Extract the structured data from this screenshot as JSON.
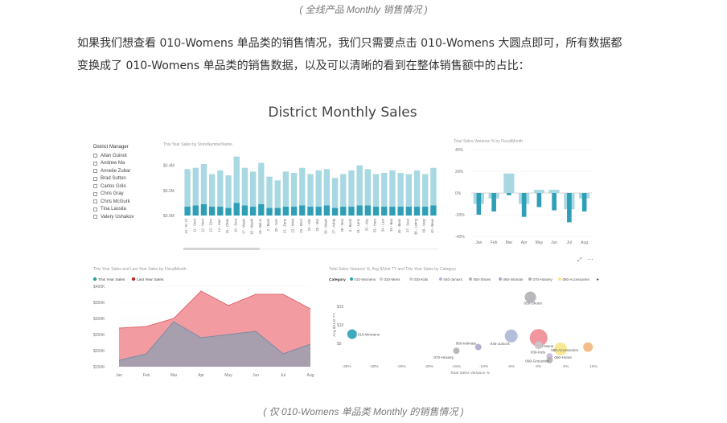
{
  "captions": {
    "top": "( 全线产品 Monthly 销售情况 )",
    "bottom": "( 仅 010-Womens 单品类 Monthly 的销售情况 )"
  },
  "paragraph": {
    "line1": "如果我们想查看 010-Womens 单品类的销售情况，我们只需要点击 010-Womens 大圆点即可，所有数据都",
    "line2": "变换成了 010-Womens 单品类的销售数据，以及可以清晰的看到在整体销售额中的占比："
  },
  "dashboard": {
    "title": "District Monthly Sales"
  },
  "slicer": {
    "title": "District Manager",
    "items": [
      "Allan Guinot",
      "Andrew Ma",
      "Annelie Zubar",
      "Brad Sutton",
      "Carlos Grilo",
      "Chris Gray",
      "Chris McGurk",
      "Tina Lassila",
      "Valery Ushakov"
    ]
  },
  "colors": {
    "teal_light": "#a8d8e2",
    "teal_dark": "#2e9fb6",
    "pink": "#f08b92",
    "gray_area": "#9aa0b0",
    "legend_teal": "#2aa198",
    "legend_red": "#c0282f"
  },
  "chart_data": [
    {
      "type": "bar",
      "title": "This Year Sales by StoreNumberName",
      "yticks": [
        "$0.4M",
        "$0.2M",
        "$0.0M"
      ],
      "ylim": [
        0,
        0.5
      ],
      "categories": [
        "10 - St. Cl",
        "11 - Cent",
        "12 - Kent",
        "13 - Cinc",
        "14 - Harr",
        "15 - Chan",
        "16 - Sout",
        "17 - Wash",
        "18 - Washi",
        "19 - Bel Ai",
        "2 - Beck",
        "20 - Nort",
        "21 - Zane",
        "22 - Wick",
        "23 - Mont",
        "24 - Alto",
        "25 - Mar",
        "26 - Wash",
        "27 - Ashla",
        "28 - Mon",
        "3 - Beckl",
        "31 - Lenn",
        "32 - Alto",
        "33 - Ham",
        "34 - Lexi",
        "35 - Bea",
        "36 - Beav",
        "37 - Sout",
        "38 - Loring",
        "39 - Varyi",
        "40 - Beve"
      ],
      "values": [
        0.37,
        0.38,
        0.41,
        0.33,
        0.36,
        0.32,
        0.47,
        0.38,
        0.35,
        0.42,
        0.31,
        0.28,
        0.35,
        0.34,
        0.38,
        0.33,
        0.36,
        0.37,
        0.3,
        0.33,
        0.36,
        0.4,
        0.37,
        0.33,
        0.34,
        0.36,
        0.34,
        0.33,
        0.36,
        0.33,
        0.38
      ],
      "womens_values": [
        0.07,
        0.08,
        0.09,
        0.07,
        0.07,
        0.06,
        0.1,
        0.08,
        0.07,
        0.09,
        0.06,
        0.06,
        0.07,
        0.07,
        0.08,
        0.07,
        0.07,
        0.08,
        0.06,
        0.07,
        0.07,
        0.08,
        0.08,
        0.07,
        0.07,
        0.07,
        0.07,
        0.07,
        0.07,
        0.07,
        0.08
      ]
    },
    {
      "type": "bar",
      "title": "Total Sales Variance % by FiscalMonth",
      "yticks": [
        "40%",
        "20%",
        "0%",
        "-20%",
        "-40%"
      ],
      "ylim": [
        -40,
        40
      ],
      "categories": [
        "Jan",
        "Feb",
        "Mar",
        "Apr",
        "May",
        "Jun",
        "Jul",
        "Aug"
      ],
      "values_all": [
        -10,
        -5,
        18,
        -10,
        3,
        3,
        -15,
        -5
      ],
      "values_womens": [
        -20,
        -17,
        -2,
        -22,
        -13,
        -16,
        -27,
        -17
      ]
    },
    {
      "type": "area",
      "title": "This Year Sales and Last Year Sales by FiscalMonth",
      "legend": [
        "This Year Sales",
        "Last Year Sales"
      ],
      "yticks": [
        "$400K",
        "$350K",
        "$300K",
        "$250K",
        "$200K",
        "$150K"
      ],
      "ylim": [
        150,
        400
      ],
      "categories": [
        "Jan",
        "Feb",
        "Mar",
        "Apr",
        "May",
        "Jun",
        "Jul",
        "Aug"
      ],
      "series": [
        {
          "name": "This Year Sales",
          "values": [
            170,
            190,
            290,
            240,
            250,
            260,
            190,
            220
          ]
        },
        {
          "name": "Last Year Sales",
          "values": [
            270,
            275,
            300,
            385,
            340,
            375,
            375,
            330
          ]
        }
      ]
    },
    {
      "type": "scatter",
      "title": "Total Sales Variance %, Avg $/Unit TY and This Year Sales by Category",
      "legend_label": "Category",
      "legend": [
        "010-Womens",
        "020-Mens",
        "030-Kids",
        "040-Juniors",
        "050-Shoes",
        "060-Intimate",
        "070-Hosiery",
        "080-Accessories"
      ],
      "xlabel": "Total Sales Variance %",
      "ylabel": "Avg $/Unit TY",
      "xticks": [
        "-35%",
        "-30%",
        "-25%",
        "-20%",
        "-15%",
        "-10%",
        "-5%",
        "0%",
        "5%",
        "10%"
      ],
      "yticks": [
        "$15",
        "$10",
        "$5"
      ],
      "xlim": [
        -35,
        10
      ],
      "ylim": [
        0,
        20
      ],
      "points": [
        {
          "label": "010-Womens",
          "x": -34,
          "y": 7.5,
          "r": 6,
          "color": "#2e9fb6"
        },
        {
          "label": "050-Shoes",
          "x": -1.5,
          "y": 17.5,
          "r": 7,
          "color": "#b0b0b6"
        },
        {
          "label": "040-Juniors",
          "x": -5,
          "y": 7,
          "r": 8,
          "color": "#a9b8d6"
        },
        {
          "label": "020-Mens",
          "x": 0,
          "y": 6.5,
          "r": 11,
          "color": "#f08b92"
        },
        {
          "label": "060-Intimate",
          "x": -11,
          "y": 4,
          "r": 4,
          "color": "#b0a6cf"
        },
        {
          "label": "070-Hosiery",
          "x": -15,
          "y": 3,
          "r": 4,
          "color": "#b0b0b6"
        },
        {
          "label": "030-Kids",
          "x": 0,
          "y": 4.5,
          "r": 5,
          "color": "#c9c9cf"
        },
        {
          "label": "080-Accessories",
          "x": 4,
          "y": 3.5,
          "r": 8,
          "color": "#f5e58a"
        },
        {
          "label": "090-Home",
          "x": 2,
          "y": 1.5,
          "r": 4,
          "color": "#c8b7dd"
        },
        {
          "label": "090-Groceries",
          "x": 2,
          "y": 0.5,
          "r": 4,
          "color": "#b0b0b6"
        },
        {
          "label": "",
          "x": 9,
          "y": 4,
          "r": 6,
          "color": "#f2b77a"
        }
      ]
    }
  ]
}
